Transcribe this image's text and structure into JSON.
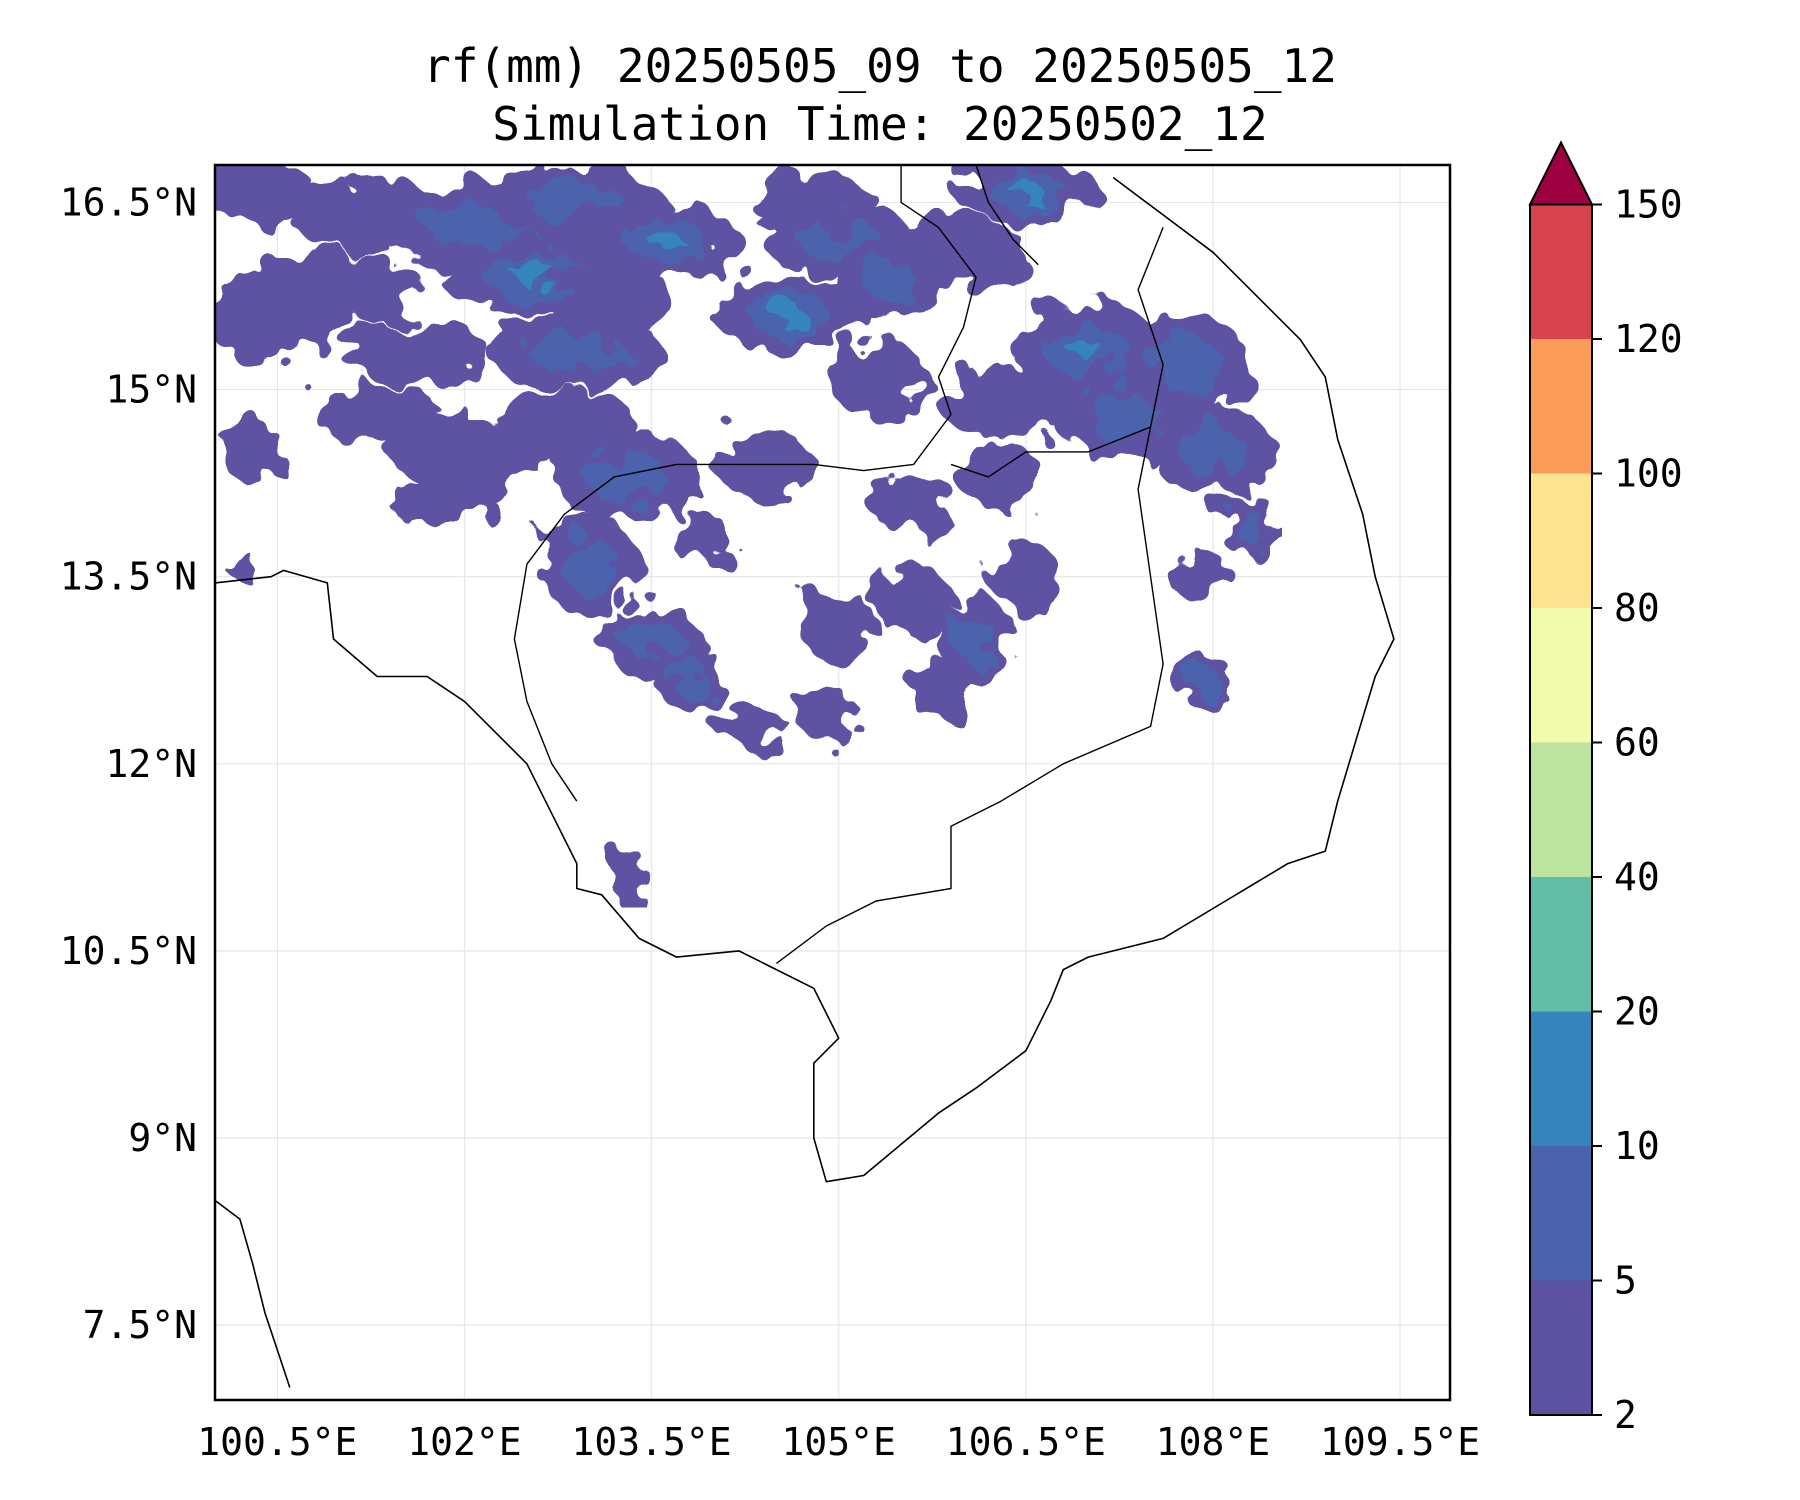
{
  "title_line1": "rf(mm) 20250505_09 to 20250505_12",
  "title_line2": "Simulation Time: 20250502_12",
  "map_extent": {
    "lon": [
      100.0,
      109.9
    ],
    "lat": [
      6.9,
      16.8
    ]
  },
  "x_ticks": [
    {
      "value": 100.5,
      "label": "100.5°E"
    },
    {
      "value": 102.0,
      "label": "102°E"
    },
    {
      "value": 103.5,
      "label": "103.5°E"
    },
    {
      "value": 105.0,
      "label": "105°E"
    },
    {
      "value": 106.5,
      "label": "106.5°E"
    },
    {
      "value": 108.0,
      "label": "108°E"
    },
    {
      "value": 109.5,
      "label": "109.5°E"
    }
  ],
  "y_ticks": [
    {
      "value": 16.5,
      "label": "16.5°N"
    },
    {
      "value": 15.0,
      "label": "15°N"
    },
    {
      "value": 13.5,
      "label": "13.5°N"
    },
    {
      "value": 12.0,
      "label": "12°N"
    },
    {
      "value": 10.5,
      "label": "10.5°N"
    },
    {
      "value": 9.0,
      "label": "9°N"
    },
    {
      "value": 7.5,
      "label": "7.5°N"
    }
  ],
  "gridlines": true,
  "colorbar": {
    "levels": [
      2,
      5,
      10,
      20,
      40,
      60,
      80,
      100,
      120,
      150
    ],
    "colors": [
      "#5d52a2",
      "#4b62ad",
      "#3584bb",
      "#62bea6",
      "#bde3a1",
      "#f2faac",
      "#fee391",
      "#fa9c58",
      "#d7434e"
    ],
    "extend_color": "#9e0142",
    "extend": "max",
    "labels": [
      "2",
      "5",
      "10",
      "20",
      "40",
      "60",
      "80",
      "100",
      "120",
      "150"
    ]
  },
  "rain_cells": [
    [
      100.3,
      16.6,
      0.5,
      0.25,
      1
    ],
    [
      101.2,
      16.4,
      0.6,
      0.3,
      1
    ],
    [
      102.2,
      16.3,
      0.9,
      0.35,
      2
    ],
    [
      102.9,
      16.5,
      0.7,
      0.3,
      2
    ],
    [
      103.6,
      16.2,
      0.6,
      0.3,
      3
    ],
    [
      102.6,
      15.9,
      0.8,
      0.3,
      3
    ],
    [
      101.0,
      15.8,
      0.7,
      0.3,
      1
    ],
    [
      100.4,
      15.6,
      0.5,
      0.35,
      1
    ],
    [
      101.6,
      15.3,
      0.6,
      0.25,
      1
    ],
    [
      102.9,
      15.3,
      0.7,
      0.3,
      2
    ],
    [
      103.2,
      15.7,
      0.5,
      0.3,
      1
    ],
    [
      104.6,
      15.6,
      0.6,
      0.3,
      3
    ],
    [
      105.0,
      16.2,
      0.6,
      0.3,
      2
    ],
    [
      105.4,
      15.9,
      0.4,
      0.3,
      2
    ],
    [
      104.8,
      16.5,
      0.5,
      0.25,
      1
    ],
    [
      106.5,
      16.6,
      0.6,
      0.25,
      3
    ],
    [
      106.0,
      16.1,
      0.5,
      0.3,
      1
    ],
    [
      105.3,
      15.1,
      0.4,
      0.3,
      1
    ],
    [
      106.3,
      14.9,
      0.5,
      0.3,
      1
    ],
    [
      107.0,
      15.3,
      0.6,
      0.4,
      3
    ],
    [
      107.3,
      14.8,
      0.6,
      0.35,
      2
    ],
    [
      107.8,
      15.2,
      0.5,
      0.4,
      2
    ],
    [
      108.0,
      14.5,
      0.5,
      0.35,
      2
    ],
    [
      108.3,
      13.9,
      0.25,
      0.25,
      2
    ],
    [
      100.3,
      14.5,
      0.25,
      0.25,
      1
    ],
    [
      101.3,
      14.8,
      0.5,
      0.25,
      1
    ],
    [
      102.0,
      14.5,
      0.6,
      0.3,
      1
    ],
    [
      102.8,
      14.7,
      0.6,
      0.3,
      1
    ],
    [
      103.3,
      14.3,
      0.6,
      0.35,
      2
    ],
    [
      103.0,
      13.6,
      0.4,
      0.4,
      2
    ],
    [
      103.5,
      13.0,
      0.4,
      0.3,
      2
    ],
    [
      103.8,
      12.7,
      0.3,
      0.25,
      2
    ],
    [
      104.3,
      12.3,
      0.3,
      0.15,
      1
    ],
    [
      105.0,
      13.1,
      0.3,
      0.3,
      1
    ],
    [
      105.6,
      13.3,
      0.3,
      0.3,
      1
    ],
    [
      106.1,
      13.0,
      0.3,
      0.35,
      2
    ],
    [
      106.5,
      13.5,
      0.25,
      0.3,
      1
    ],
    [
      105.8,
      12.6,
      0.25,
      0.25,
      1
    ],
    [
      104.9,
      12.4,
      0.25,
      0.2,
      1
    ],
    [
      107.9,
      13.5,
      0.25,
      0.2,
      1
    ],
    [
      107.9,
      12.7,
      0.25,
      0.2,
      2
    ],
    [
      103.3,
      11.1,
      0.15,
      0.25,
      1
    ],
    [
      104.4,
      14.4,
      0.4,
      0.25,
      1
    ],
    [
      105.6,
      14.1,
      0.35,
      0.25,
      1
    ],
    [
      106.3,
      14.3,
      0.35,
      0.25,
      1
    ],
    [
      103.9,
      13.8,
      0.25,
      0.2,
      1
    ],
    [
      101.8,
      14.1,
      0.4,
      0.2,
      1
    ],
    [
      100.2,
      13.6,
      0.12,
      0.12,
      1
    ]
  ],
  "coastline": [
    [
      [
        100.0,
        13.45
      ],
      [
        100.45,
        13.5
      ],
      [
        100.55,
        13.55
      ],
      [
        100.9,
        13.45
      ],
      [
        100.95,
        13.0
      ],
      [
        101.3,
        12.7
      ],
      [
        101.7,
        12.7
      ],
      [
        102.0,
        12.5
      ],
      [
        102.3,
        12.2
      ],
      [
        102.5,
        12.0
      ],
      [
        102.7,
        11.6
      ],
      [
        102.9,
        11.2
      ],
      [
        102.9,
        11.0
      ],
      [
        103.1,
        10.95
      ],
      [
        103.4,
        10.6
      ],
      [
        103.7,
        10.45
      ],
      [
        104.2,
        10.5
      ],
      [
        104.5,
        10.35
      ],
      [
        104.8,
        10.2
      ],
      [
        105.0,
        9.8
      ],
      [
        104.8,
        9.6
      ],
      [
        104.8,
        9.0
      ],
      [
        104.9,
        8.65
      ],
      [
        105.2,
        8.7
      ],
      [
        105.8,
        9.2
      ],
      [
        106.1,
        9.4
      ],
      [
        106.5,
        9.7
      ],
      [
        106.7,
        10.1
      ],
      [
        106.8,
        10.35
      ],
      [
        107.0,
        10.45
      ],
      [
        107.6,
        10.6
      ],
      [
        108.1,
        10.9
      ],
      [
        108.6,
        11.2
      ],
      [
        108.9,
        11.3
      ],
      [
        109.0,
        11.7
      ],
      [
        109.15,
        12.2
      ],
      [
        109.3,
        12.7
      ],
      [
        109.45,
        13.0
      ],
      [
        109.3,
        13.5
      ],
      [
        109.2,
        14.0
      ],
      [
        109.0,
        14.6
      ],
      [
        108.9,
        15.1
      ],
      [
        108.7,
        15.4
      ],
      [
        108.3,
        15.8
      ],
      [
        108.0,
        16.1
      ],
      [
        107.6,
        16.4
      ],
      [
        107.2,
        16.7
      ]
    ],
    [
      [
        100.0,
        8.5
      ],
      [
        100.2,
        8.35
      ],
      [
        100.3,
        8.0
      ],
      [
        100.4,
        7.6
      ],
      [
        100.5,
        7.3
      ],
      [
        100.6,
        7.0
      ]
    ]
  ],
  "borders": [
    [
      [
        105.5,
        16.8
      ],
      [
        105.5,
        16.5
      ],
      [
        105.8,
        16.3
      ],
      [
        106.1,
        15.9
      ],
      [
        106.0,
        15.5
      ],
      [
        105.8,
        15.1
      ],
      [
        105.9,
        14.8
      ],
      [
        105.6,
        14.4
      ],
      [
        105.2,
        14.35
      ],
      [
        104.8,
        14.4
      ],
      [
        104.3,
        14.4
      ],
      [
        103.7,
        14.4
      ],
      [
        103.2,
        14.3
      ],
      [
        102.8,
        14.0
      ],
      [
        102.5,
        13.6
      ],
      [
        102.4,
        13.0
      ],
      [
        102.5,
        12.5
      ],
      [
        102.7,
        12.0
      ],
      [
        102.9,
        11.7
      ]
    ],
    [
      [
        105.9,
        14.4
      ],
      [
        106.2,
        14.3
      ],
      [
        106.5,
        14.5
      ],
      [
        107.0,
        14.5
      ],
      [
        107.5,
        14.7
      ],
      [
        107.6,
        15.2
      ],
      [
        107.4,
        15.8
      ],
      [
        107.6,
        16.3
      ]
    ],
    [
      [
        107.5,
        14.7
      ],
      [
        107.4,
        14.2
      ],
      [
        107.5,
        13.5
      ],
      [
        107.6,
        12.8
      ],
      [
        107.5,
        12.3
      ],
      [
        106.8,
        12.0
      ],
      [
        106.3,
        11.7
      ],
      [
        105.9,
        11.5
      ],
      [
        105.9,
        11.0
      ],
      [
        105.3,
        10.9
      ],
      [
        104.9,
        10.7
      ],
      [
        104.5,
        10.4
      ]
    ],
    [
      [
        106.1,
        16.8
      ],
      [
        106.2,
        16.5
      ],
      [
        106.4,
        16.2
      ],
      [
        106.6,
        16.0
      ]
    ]
  ]
}
